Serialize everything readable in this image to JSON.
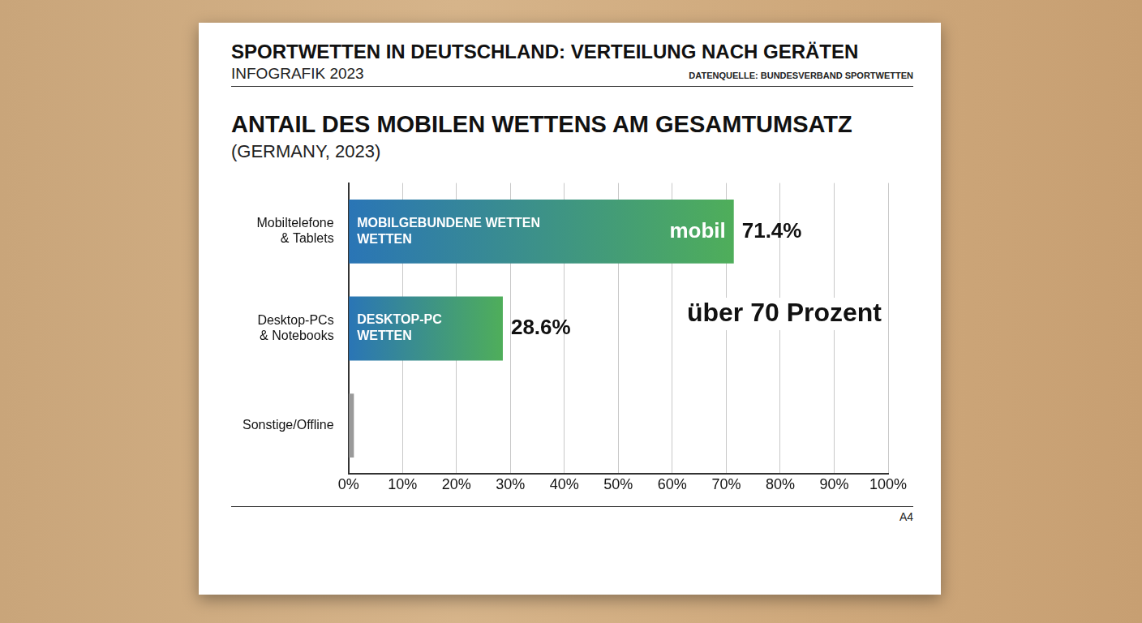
{
  "header": {
    "title": "SPORTWETTEN IN DEUTSCHLAND: VERTEILUNG NACH GERÄTEN",
    "subtitle": "INFOGRAFIK 2023",
    "source": "DATENQUELLE: BUNDESVERBAND SPORTWETTEN"
  },
  "chart_data": {
    "type": "bar",
    "orientation": "horizontal",
    "title": "ANTAIL DES MOBILEN WETTENS AM GESAMTUMSATZ",
    "subtitle": "(GERMANY, 2023)",
    "categories": [
      "Mobiltelefone & Tablets",
      "Desktop-PCs & Notebooks",
      "Sonstige/Offline"
    ],
    "values": [
      71.4,
      28.6,
      1
    ],
    "value_labels": [
      "71.4%",
      "28.6%",
      null
    ],
    "bar_texts": [
      [
        "MOBILGEBUNDENE WETTEN",
        "WETTEN"
      ],
      [
        "DESKTOP-PC",
        "WETTEN"
      ],
      null
    ],
    "bar_tags": [
      "mobil",
      null,
      null
    ],
    "annotations": [
      "über 70 Prozent"
    ],
    "colors": [
      "#2a75b6",
      "#2a75b6",
      "#9a9a9a"
    ],
    "xlim": [
      0,
      100
    ],
    "xticks": [
      {
        "value": 0,
        "label": "0%"
      },
      {
        "value": 10,
        "label": "10%"
      },
      {
        "value": 20,
        "label": "20%"
      },
      {
        "value": 30,
        "label": "30%"
      },
      {
        "value": 40,
        "label": "40%"
      },
      {
        "value": 50,
        "label": "50%"
      },
      {
        "value": 60,
        "label": "60%"
      },
      {
        "value": 70,
        "label": "70%"
      },
      {
        "value": 80,
        "label": "80%"
      },
      {
        "value": 90,
        "label": "90%"
      },
      {
        "value": 100,
        "label": "100%"
      }
    ],
    "grid": true,
    "data_labels": true
  },
  "footer": "A4"
}
